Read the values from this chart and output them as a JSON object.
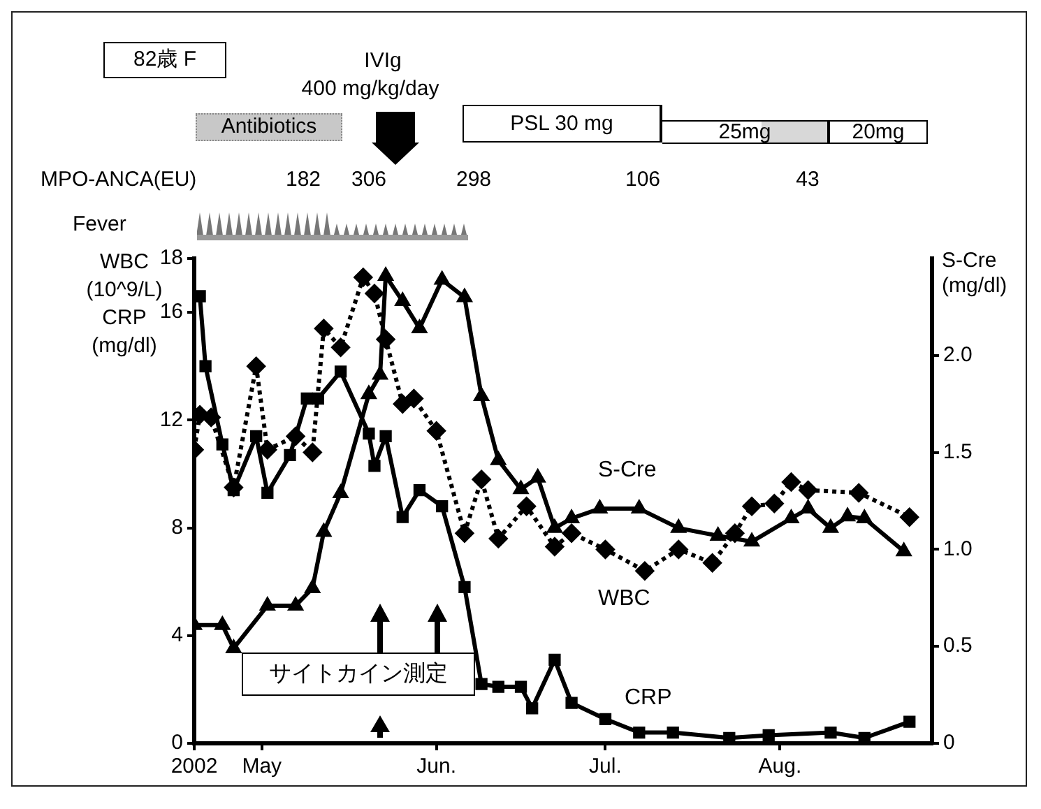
{
  "chart_data": {
    "type": "line",
    "ylabel": "WBC\n(10^9/L)\nCRP\n(mg/dl)",
    "y2label": "S-Cre\n(mg/dl)",
    "xlim": [
      "2002-04-19",
      "2002-08-28"
    ],
    "xticks": [
      {
        "value": "2002-04-19",
        "label": "2002"
      },
      {
        "value": "2002-05-01",
        "label": "May"
      },
      {
        "value": "2002-06-01",
        "label": "Jun."
      },
      {
        "value": "2002-07-01",
        "label": "Jul."
      },
      {
        "value": "2002-08-01",
        "label": "Aug."
      }
    ],
    "ylim": [
      0,
      18
    ],
    "yticks": [
      0,
      4,
      8,
      12,
      16,
      18
    ],
    "y2lim": [
      0,
      2.5
    ],
    "y2ticks": [
      0,
      0.5,
      {
        "value": 1,
        "label": "1.0"
      },
      1.5,
      {
        "value": 2,
        "label": "2.0"
      }
    ],
    "grid": false,
    "legend": false,
    "series": [
      {
        "name": "WBC",
        "color": "#000000",
        "marker": "diamond",
        "line_style": "dotted",
        "x": [
          "2002-04-19",
          "2002-04-20",
          "2002-04-22",
          "2002-04-26",
          "2002-04-30",
          "2002-05-02",
          "2002-05-07",
          "2002-05-10",
          "2002-05-12",
          "2002-05-15",
          "2002-05-19",
          "2002-05-21",
          "2002-05-23",
          "2002-05-26",
          "2002-05-28",
          "2002-06-01",
          "2002-06-06",
          "2002-06-09",
          "2002-06-12",
          "2002-06-17",
          "2002-06-22",
          "2002-06-25",
          "2002-07-01",
          "2002-07-08",
          "2002-07-14",
          "2002-07-20",
          "2002-07-24",
          "2002-07-27",
          "2002-07-31",
          "2002-08-03",
          "2002-08-06",
          "2002-08-15",
          "2002-08-24"
        ],
        "values": [
          10.9,
          12.2,
          12.1,
          9.5,
          14.0,
          10.9,
          11.4,
          10.8,
          15.4,
          14.7,
          17.3,
          16.7,
          15.0,
          12.6,
          12.8,
          11.6,
          7.8,
          9.8,
          7.6,
          8.8,
          7.3,
          7.8,
          7.2,
          6.4,
          7.2,
          6.7,
          7.8,
          8.8,
          8.9,
          9.7,
          9.4,
          9.3,
          8.4
        ]
      },
      {
        "name": "CRP",
        "color": "#000000",
        "marker": "square",
        "line_style": "solid",
        "x": [
          "2002-04-20",
          "2002-04-21",
          "2002-04-24",
          "2002-04-26",
          "2002-04-30",
          "2002-05-02",
          "2002-05-06",
          "2002-05-09",
          "2002-05-11",
          "2002-05-15",
          "2002-05-20",
          "2002-05-21",
          "2002-05-23",
          "2002-05-26",
          "2002-05-29",
          "2002-06-02",
          "2002-06-06",
          "2002-06-09",
          "2002-06-12",
          "2002-06-16",
          "2002-06-18",
          "2002-06-22",
          "2002-06-25",
          "2002-07-01",
          "2002-07-07",
          "2002-07-13",
          "2002-07-23",
          "2002-07-30",
          "2002-08-10",
          "2002-08-16",
          "2002-08-24"
        ],
        "values": [
          16.6,
          14.0,
          11.1,
          9.4,
          11.4,
          9.3,
          10.7,
          12.8,
          12.8,
          13.8,
          11.5,
          10.3,
          11.4,
          8.4,
          9.4,
          8.8,
          5.8,
          2.2,
          2.1,
          2.1,
          1.3,
          3.1,
          1.5,
          0.9,
          0.4,
          0.4,
          0.2,
          0.3,
          0.4,
          0.2,
          0.8
        ]
      },
      {
        "name": "S-Cre",
        "color": "#000000",
        "marker": "triangle",
        "line_style": "solid",
        "axis": "y2",
        "x": [
          "2002-04-19",
          "2002-04-24",
          "2002-04-26",
          "2002-05-02",
          "2002-05-07",
          "2002-05-10",
          "2002-05-12",
          "2002-05-15",
          "2002-05-20",
          "2002-05-22",
          "2002-05-23",
          "2002-05-26",
          "2002-05-29",
          "2002-06-02",
          "2002-06-06",
          "2002-06-09",
          "2002-06-12",
          "2002-06-16",
          "2002-06-19",
          "2002-06-22",
          "2002-06-25",
          "2002-06-30",
          "2002-07-07",
          "2002-07-14",
          "2002-07-21",
          "2002-07-27",
          "2002-08-03",
          "2002-08-06",
          "2002-08-10",
          "2002-08-13",
          "2002-08-16",
          "2002-08-23"
        ],
        "values": [
          0.61,
          0.61,
          0.49,
          0.71,
          0.71,
          0.8,
          1.09,
          1.29,
          1.8,
          1.9,
          2.41,
          2.28,
          2.14,
          2.39,
          2.3,
          1.79,
          1.46,
          1.31,
          1.37,
          1.11,
          1.16,
          1.21,
          1.21,
          1.11,
          1.07,
          1.04,
          1.16,
          1.21,
          1.11,
          1.17,
          1.16,
          0.99
        ]
      }
    ],
    "annotations": [
      "82歳 F",
      "IVIg",
      "400 mg/kg/day",
      "Antibiotics",
      "PSL 30 mg",
      "25mg",
      "20mg",
      "MPO-ANCA(EU)",
      "182",
      "306",
      "298",
      "106",
      "43",
      "Fever",
      "サイトカイン測定"
    ]
  }
}
